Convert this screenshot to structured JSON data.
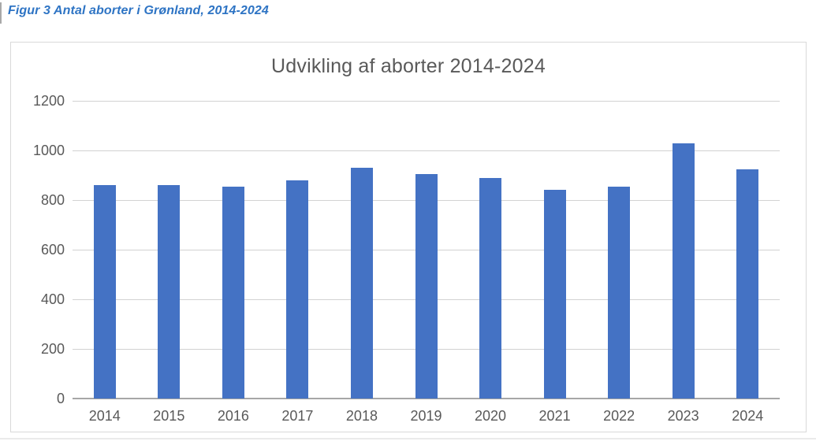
{
  "caption": {
    "text": "Figur 3 Antal aborter i Grønland, 2014-2024"
  },
  "colors": {
    "caption_blue": "#2E74C4",
    "bar_fill": "#4472C4",
    "title_text": "#595959",
    "tick_text": "#595959",
    "gridline": "#D2D2D2",
    "axis_line": "#A6A6A6",
    "chart_border": "#D9D9D9"
  },
  "chart_data": {
    "type": "bar",
    "title": "Udvikling af aborter 2014-2024",
    "categories": [
      "2014",
      "2015",
      "2016",
      "2017",
      "2018",
      "2019",
      "2020",
      "2021",
      "2022",
      "2023",
      "2024"
    ],
    "values": [
      860,
      860,
      855,
      880,
      930,
      905,
      890,
      840,
      855,
      1030,
      925
    ],
    "xlabel": "",
    "ylabel": "",
    "ylim": [
      0,
      1200
    ],
    "yticks": [
      0,
      200,
      400,
      600,
      800,
      1000,
      1200
    ],
    "grid": true,
    "legend": "none"
  }
}
